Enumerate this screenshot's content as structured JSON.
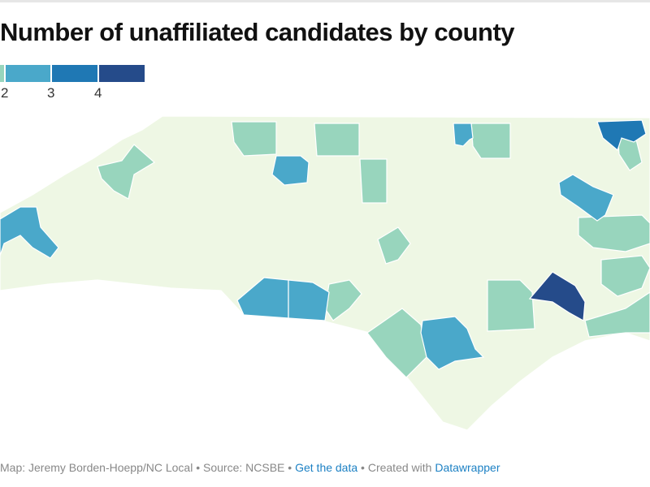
{
  "title": "Number of unaffiliated candidates by county",
  "legend": {
    "labels": [
      "2",
      "3",
      "4"
    ],
    "colors": [
      "#eef7e4",
      "#98d5bd",
      "#4aa8ca",
      "#1f78b4",
      "#254b8a"
    ]
  },
  "footer": {
    "credit": "Map: Jeremy Borden-Hoepp/NC Local",
    "source": "• Source: NCSBE •",
    "get_data": "Get the data",
    "created": "• Created with",
    "datawrapper": "Datawrapper"
  },
  "map": {
    "region": "North Carolina counties",
    "base_color": "#eef7e4",
    "highlighted_counties": [
      {
        "level": 1,
        "color": "#98d5bd"
      },
      {
        "level": 2,
        "color": "#4aa8ca"
      },
      {
        "level": 3,
        "color": "#1f78b4"
      },
      {
        "level": 4,
        "color": "#254b8a"
      }
    ]
  }
}
